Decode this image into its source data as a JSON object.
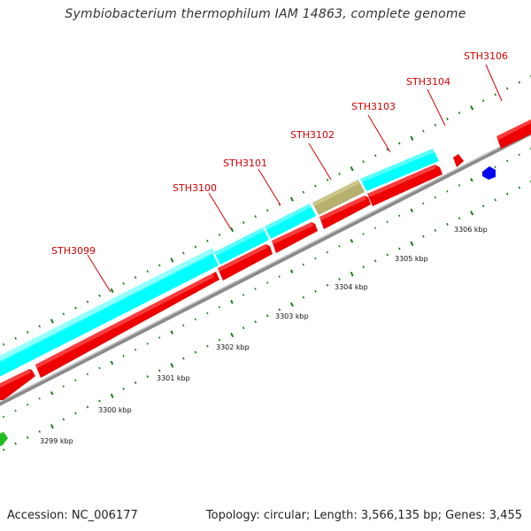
{
  "title": "Symbiobacterium thermophilum IAM 14863, complete genome",
  "footer": {
    "accession": "Accession: NC_006177",
    "summary": "Topology: circular; Length: 3,566,135 bp; Genes: 3,455"
  },
  "colors": {
    "background": "#ffffff",
    "cds_forward": "#ff0000",
    "rrna_cyan": "#00ffff",
    "gene_olive": "#b5b06e",
    "reverse_blue": "#0000ee",
    "green_feature": "#22bb22",
    "backbone": "#999999",
    "ticks": "#1a7a1a",
    "label": "#d40000"
  },
  "gene_labels": [
    "STH3099",
    "STH3100",
    "STH3101",
    "STH3102",
    "STH3103",
    "STH3104",
    "STH3106"
  ],
  "kbp_labels": [
    "3299 kbp",
    "3300 kbp",
    "3301 kbp",
    "3302 kbp",
    "3303 kbp",
    "3304 kbp",
    "3305 kbp",
    "3306 kbp"
  ]
}
